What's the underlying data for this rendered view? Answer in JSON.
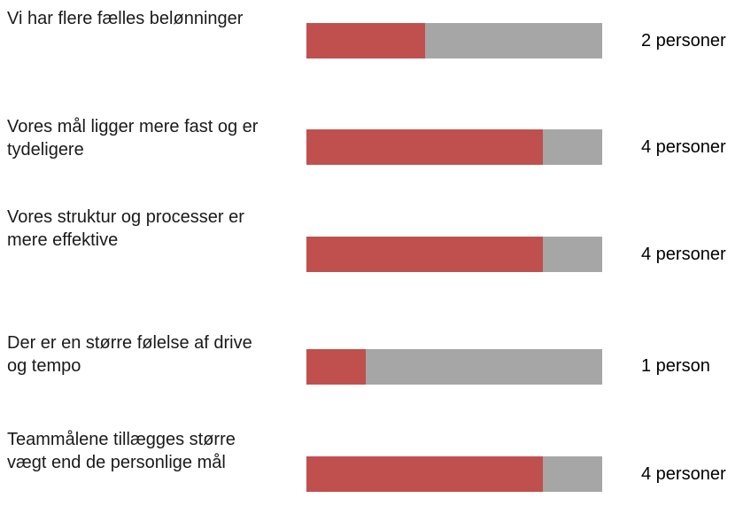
{
  "chart_data": {
    "type": "bar",
    "orientation": "horizontal",
    "max": 5,
    "colors": {
      "fill": "#c0504d",
      "track": "#a6a6a6"
    },
    "categories": [
      "Vi har flere fælles belønninger",
      "Vores mål ligger mere fast og er tydeligere",
      "Vores struktur og processer er mere effektive",
      "Der er en større følelse af drive og tempo",
      "Teammålene tillægges større vægt end de personlige mål"
    ],
    "values": [
      2,
      4,
      4,
      1,
      4
    ],
    "value_labels": [
      "2 personer",
      "4 personer",
      "4 personer",
      "1 person",
      "4 personer"
    ]
  }
}
